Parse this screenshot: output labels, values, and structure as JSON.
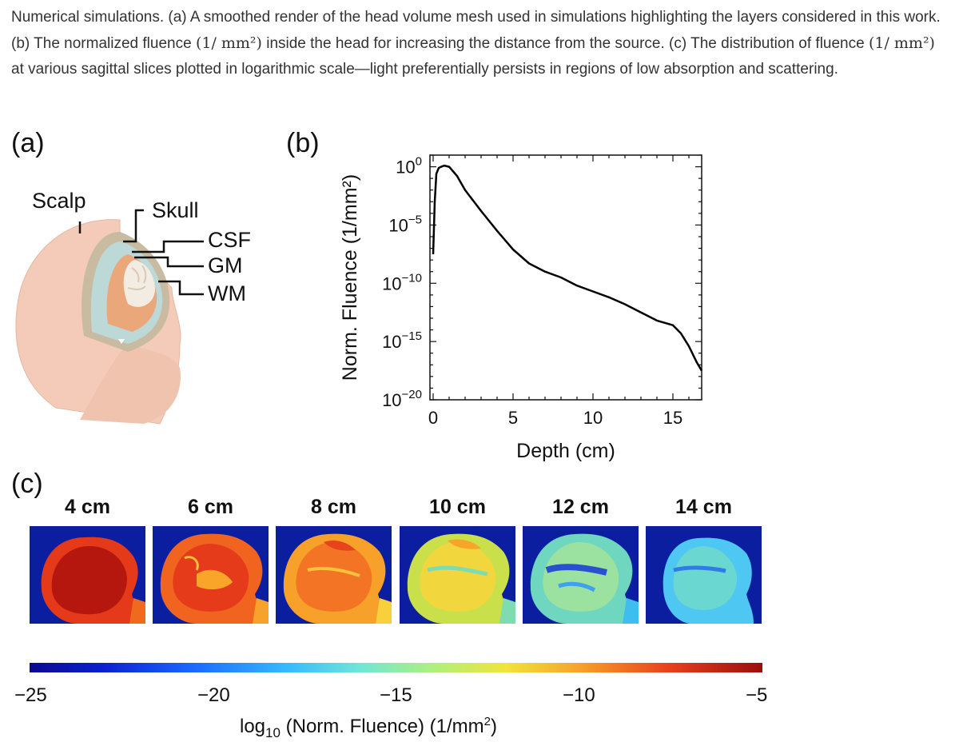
{
  "caption": {
    "part1": "Numerical simulations. (a) A smoothed render of the head volume mesh used in simulations highlighting the layers considered in this work. (b) The normalized fluence ",
    "unit": "(1/ mm²)",
    "part2": " inside the head for increasing the distance from the source. (c) The distribution of fluence ",
    "part3": " at various sagittal slices plotted in logarithmic scale—light preferentially persists in regions of low absorption and scattering."
  },
  "panel_a": {
    "label": "(a)",
    "layers": [
      "Scalp",
      "Skull",
      "CSF",
      "GM",
      "WM"
    ]
  },
  "panel_b": {
    "label": "(b)"
  },
  "panel_c": {
    "label": "(c)",
    "slices": [
      "4 cm",
      "6 cm",
      "8 cm",
      "10 cm",
      "12 cm",
      "14 cm"
    ],
    "colorbar": {
      "ticks": [
        "−25",
        "−20",
        "−15",
        "−10",
        "−5"
      ],
      "label_prefix": "log",
      "label_sub": "10",
      "label_rest": " (Norm. Fluence) (1/mm",
      "label_sup": "2",
      "label_end": ")"
    }
  },
  "chart_data": {
    "type": "line",
    "xlabel": "Depth (cm)",
    "ylabel": "Norm. Fluence (1/mm²)",
    "xlim": [
      -0.2,
      16.8
    ],
    "ylim": [
      -20,
      1
    ],
    "yscale": "log",
    "xticks": [
      0,
      5,
      10,
      15
    ],
    "yticks": [
      "10^0",
      "10^-5",
      "10^-10",
      "10^-15",
      "10^-20"
    ],
    "series": [
      {
        "x": [
          0.0,
          0.1,
          0.2,
          0.35,
          0.5,
          0.7,
          1.0,
          1.5,
          2.0,
          3.0,
          4.0,
          5.0,
          6.0,
          7.0,
          8.0,
          9.0,
          10.0,
          11.0,
          12.0,
          13.0,
          14.0,
          15.0,
          15.5,
          16.0,
          16.5,
          16.8
        ],
        "log10_y": [
          -7.5,
          -3.0,
          -0.6,
          -0.1,
          0.0,
          0.1,
          0.0,
          -0.8,
          -2.0,
          -3.8,
          -5.5,
          -7.1,
          -8.3,
          -9.0,
          -9.5,
          -10.2,
          -10.7,
          -11.2,
          -11.8,
          -12.5,
          -13.2,
          -13.6,
          -14.3,
          -15.4,
          -16.8,
          -17.5
        ]
      }
    ]
  }
}
